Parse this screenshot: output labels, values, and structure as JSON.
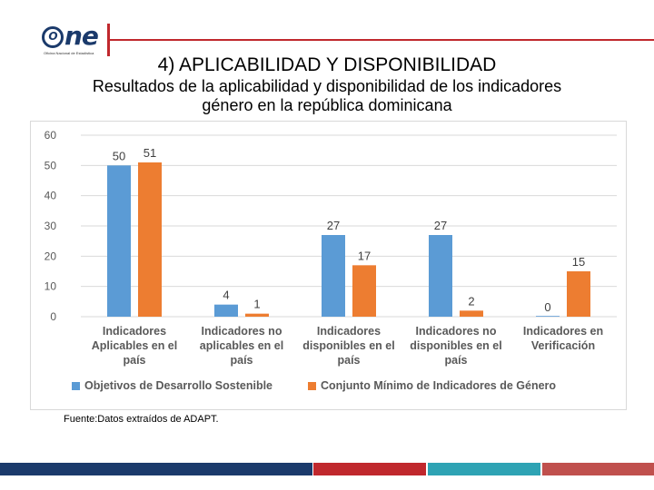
{
  "logo": {
    "text": "ne",
    "letter": "O",
    "subtitle": "Oficina Nacional de Estadística"
  },
  "slide": {
    "title": "4) APLICABILIDAD Y DISPONIBILIDAD",
    "subtitle_line1": "Resultados de la aplicabilidad y disponibilidad de los indicadores",
    "subtitle_line2": "género en la república dominicana",
    "source": "Fuente:Datos extraídos de ADAPT."
  },
  "colors": {
    "series1": "#5b9bd5",
    "series2": "#ed7d31",
    "brand_red": "#c0282d",
    "footer": [
      "#1b3a6b",
      "#c0282d",
      "#2ea3b4",
      "#c0504d"
    ]
  },
  "chart_data": {
    "type": "bar",
    "title": "",
    "categories": [
      [
        "Indicadores",
        "Aplicables en el",
        "país"
      ],
      [
        "Indicadores no",
        "aplicables en el",
        "país"
      ],
      [
        "Indicadores",
        "disponibles en el",
        "país"
      ],
      [
        "Indicadores no",
        "disponibles en el",
        "país"
      ],
      [
        "Indicadores en",
        "Verificación"
      ]
    ],
    "series": [
      {
        "name": "Objetivos de Desarrollo Sostenible",
        "values": [
          50,
          4,
          27,
          27,
          0
        ]
      },
      {
        "name": "Conjunto Mínimo de Indicadores de Género",
        "values": [
          51,
          1,
          17,
          2,
          15
        ]
      }
    ],
    "ylim": [
      0,
      60
    ],
    "yticks": [
      0,
      10,
      20,
      30,
      40,
      50,
      60
    ],
    "grid": true,
    "legend": "bottom",
    "xlabel": "",
    "ylabel": ""
  }
}
